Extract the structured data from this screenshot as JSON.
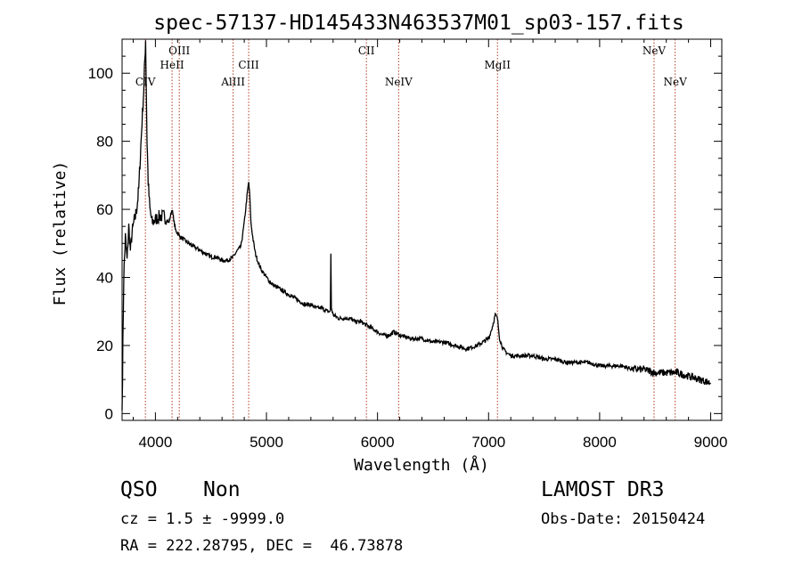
{
  "chart_data": {
    "type": "line",
    "title": "spec-57137-HD145433N463537M01_sp03-157.fits",
    "xlabel": "Wavelength (Å)",
    "ylabel": "Flux (relative)",
    "xlim": [
      3700,
      9100
    ],
    "ylim": [
      -2,
      110
    ],
    "xticks": [
      4000,
      5000,
      6000,
      7000,
      8000,
      9000
    ],
    "yticks": [
      0,
      20,
      40,
      60,
      80,
      100
    ],
    "grid": false,
    "series": [
      {
        "x": [
          3700,
          3715,
          3730,
          3745,
          3760,
          3775,
          3790,
          3805,
          3820,
          3835,
          3850,
          3865,
          3880,
          3895,
          3905,
          3912,
          3918,
          3925,
          3935,
          3950,
          3970,
          4000,
          4040,
          4080,
          4120,
          4150,
          4180,
          4220,
          4260,
          4300,
          4350,
          4400,
          4450,
          4500,
          4550,
          4600,
          4650,
          4700,
          4740,
          4770,
          4800,
          4825,
          4840,
          4850,
          4860,
          4880,
          4900,
          4930,
          4960,
          5000,
          5050,
          5100,
          5150,
          5200,
          5250,
          5300,
          5350,
          5400,
          5450,
          5500,
          5550,
          5575,
          5580,
          5585,
          5600,
          5650,
          5700,
          5750,
          5800,
          5850,
          5900,
          5950,
          6000,
          6050,
          6100,
          6150,
          6200,
          6300,
          6400,
          6500,
          6600,
          6700,
          6800,
          6900,
          6950,
          7000,
          7030,
          7060,
          7080,
          7100,
          7130,
          7160,
          7200,
          7300,
          7400,
          7500,
          7600,
          7700,
          7800,
          7900,
          8000,
          8100,
          8200,
          8300,
          8400,
          8500,
          8600,
          8700,
          8800,
          8900,
          9000
        ],
        "y": [
          1,
          40,
          52,
          45,
          55,
          48,
          53,
          56,
          58,
          61,
          66,
          76,
          86,
          95,
          104,
          110,
          95,
          80,
          68,
          60,
          56,
          57,
          58,
          58,
          56,
          60,
          54,
          52,
          51,
          50,
          49,
          48,
          47,
          46,
          46,
          45,
          45,
          46,
          48,
          49,
          56,
          64,
          68,
          64,
          56,
          51,
          47,
          44,
          42,
          40,
          38,
          37,
          36,
          35,
          34,
          33,
          32,
          32,
          31,
          31,
          30,
          30,
          47,
          31,
          29,
          28,
          28,
          28,
          27,
          27,
          26,
          25,
          24,
          23,
          23,
          24,
          23,
          22,
          22,
          21,
          21,
          20,
          19,
          20,
          21,
          22,
          25,
          29,
          28,
          22,
          19,
          18,
          17,
          17,
          17,
          16,
          16,
          15,
          15,
          15,
          14,
          14,
          14,
          13,
          13,
          12,
          12,
          12,
          11,
          10,
          9
        ]
      }
    ],
    "lines": [
      {
        "label": "CIV",
        "x": 3910,
        "row": 2
      },
      {
        "label": "HeII",
        "x": 4150,
        "row": 1
      },
      {
        "label": "OIII",
        "x": 4215,
        "row": 0
      },
      {
        "label": "AlIII",
        "x": 4700,
        "row": 2
      },
      {
        "label": "CIII",
        "x": 4840,
        "row": 1
      },
      {
        "label": "CII",
        "x": 5900,
        "row": 0
      },
      {
        "label": "NeIV",
        "x": 6190,
        "row": 2
      },
      {
        "label": "MgII",
        "x": 7080,
        "row": 1
      },
      {
        "label": "NeV",
        "x": 8490,
        "row": 0
      },
      {
        "label": "NeV",
        "x": 8680,
        "row": 2
      }
    ]
  },
  "info": {
    "class": "QSO",
    "subclass": "Non",
    "survey": "LAMOST DR3",
    "cz": "cz = 1.5 ± -9999.0",
    "obsdate": "Obs-Date: 20150424",
    "radec": "RA = 222.28795, DEC =  46.73878"
  },
  "colors": {
    "spectrum": "#000000",
    "line_marker": "#b03a1e",
    "axes": "#000000"
  }
}
